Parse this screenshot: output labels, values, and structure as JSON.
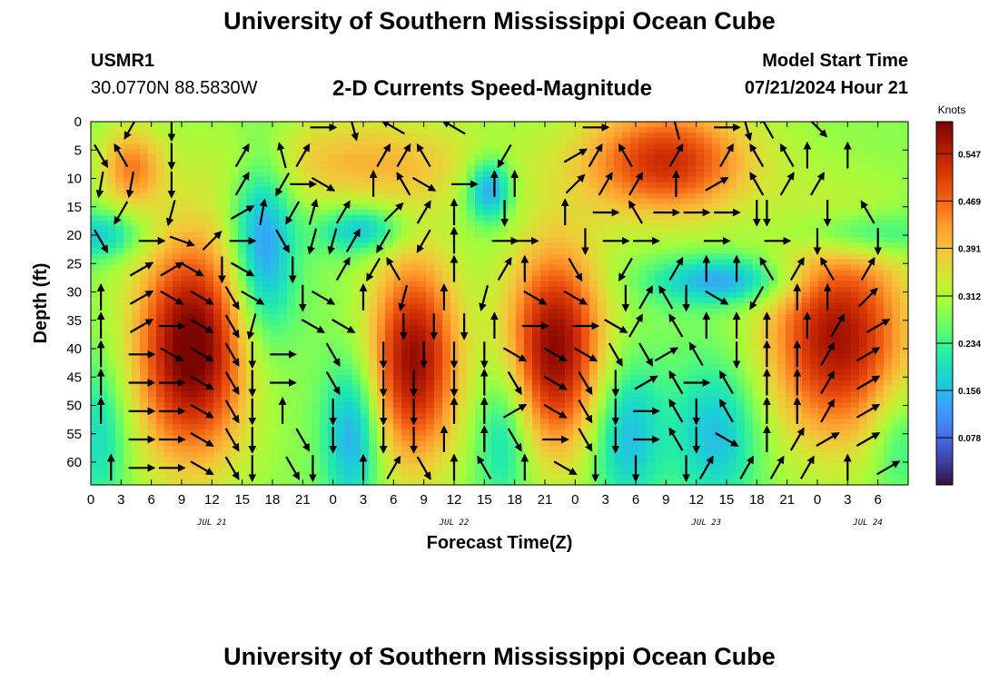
{
  "header": {
    "title": "University of Southern Mississippi Ocean Cube",
    "station_id": "USMR1",
    "station_coords": "30.0770N  88.5830W",
    "plot_title": "2-D Currents Speed-Magnitude",
    "model_start_label": "Model Start Time",
    "model_start_value": "07/21/2024 Hour 21"
  },
  "footer": {
    "title": "University of Southern Mississippi Ocean Cube"
  },
  "chart_data": {
    "type": "heatmap",
    "title": "2-D Currents Speed-Magnitude",
    "xlabel": "Forecast Time(Z)",
    "ylabel": "Depth (ft)",
    "units": "Knots",
    "xlim_hours": [
      0,
      81
    ],
    "ylim": [
      0,
      64
    ],
    "y_inverted": true,
    "x_tick_labels": [
      "0",
      "3",
      "6",
      "9",
      "12",
      "15",
      "18",
      "21",
      "0",
      "3",
      "6",
      "9",
      "12",
      "15",
      "18",
      "21",
      "0",
      "3",
      "6",
      "9",
      "12",
      "15",
      "18",
      "21",
      "0",
      "3",
      "6"
    ],
    "y_tick_labels": [
      "0",
      "5",
      "10",
      "15",
      "20",
      "25",
      "30",
      "35",
      "40",
      "45",
      "50",
      "55",
      "60"
    ],
    "date_labels": [
      {
        "hour": 12,
        "text": "JUL 21"
      },
      {
        "hour": 36,
        "text": "JUL 22"
      },
      {
        "hour": 61,
        "text": "JUL 23"
      },
      {
        "hour": 77,
        "text": "JUL 24"
      }
    ],
    "colorbar": {
      "min": 0.0,
      "max": 0.6,
      "ticks": [
        "0.547",
        "0.469",
        "0.391",
        "0.312",
        "0.234",
        "0.156",
        "0.078"
      ],
      "tick_values": [
        0.547,
        0.469,
        0.391,
        0.312,
        0.234,
        0.156,
        0.078
      ],
      "colors": [
        "#30123b",
        "#4145ab",
        "#4675ed",
        "#39a2fc",
        "#1bcfd4",
        "#24eca6",
        "#61fc6c",
        "#a4fc3b",
        "#d1e834",
        "#f3c63a",
        "#fe9b2d",
        "#f36315",
        "#d93806",
        "#b11901",
        "#7a0402"
      ]
    },
    "speed_field": {
      "background": 0.28,
      "features": [
        {
          "t": 4,
          "d": 8,
          "st": 2.2,
          "sd": 5,
          "a": 0.16
        },
        {
          "t": 10,
          "d": 40,
          "st": 4.0,
          "sd": 14,
          "a": 0.34
        },
        {
          "t": 27,
          "d": 7,
          "st": 9.0,
          "sd": 6,
          "a": 0.12
        },
        {
          "t": 32,
          "d": 42,
          "st": 3.2,
          "sd": 13,
          "a": 0.3
        },
        {
          "t": 46,
          "d": 40,
          "st": 3.5,
          "sd": 13,
          "a": 0.31
        },
        {
          "t": 57,
          "d": 7,
          "st": 6.0,
          "sd": 7,
          "a": 0.25
        },
        {
          "t": 74,
          "d": 38,
          "st": 5.0,
          "sd": 13,
          "a": 0.29
        },
        {
          "t": 17,
          "d": 22,
          "st": 2.2,
          "sd": 12,
          "a": -0.18
        },
        {
          "t": 1,
          "d": 20,
          "st": 3.0,
          "sd": 3,
          "a": -0.12
        },
        {
          "t": 27,
          "d": 19,
          "st": 3.0,
          "sd": 3,
          "a": -0.14
        },
        {
          "t": 39.5,
          "d": 12,
          "st": 1.6,
          "sd": 4,
          "a": -0.18
        },
        {
          "t": 26,
          "d": 55,
          "st": 2.0,
          "sd": 9,
          "a": -0.16
        },
        {
          "t": 41,
          "d": 55,
          "st": 2.0,
          "sd": 9,
          "a": -0.12
        },
        {
          "t": 53,
          "d": 55,
          "st": 2.5,
          "sd": 9,
          "a": -0.14
        },
        {
          "t": 63,
          "d": 28,
          "st": 5.0,
          "sd": 3,
          "a": -0.16
        },
        {
          "t": 62,
          "d": 55,
          "st": 3.0,
          "sd": 9,
          "a": -0.13
        },
        {
          "t": 76,
          "d": 20,
          "st": 5.0,
          "sd": 3,
          "a": -0.12
        },
        {
          "t": 1,
          "d": 55,
          "st": 2.0,
          "sd": 9,
          "a": -0.1
        },
        {
          "t": 80,
          "d": 56,
          "st": 2.0,
          "sd": 7,
          "a": -0.08
        }
      ]
    },
    "current_vectors": [
      [
        4,
        1,
        210
      ],
      [
        8,
        1,
        180
      ],
      [
        23,
        1,
        90
      ],
      [
        26,
        1,
        165
      ],
      [
        30,
        1,
        300
      ],
      [
        36,
        1,
        300
      ],
      [
        50,
        1,
        90
      ],
      [
        58,
        1,
        345
      ],
      [
        63,
        1,
        90
      ],
      [
        65,
        1,
        165
      ],
      [
        67,
        1,
        330
      ],
      [
        72,
        1,
        135
      ],
      [
        1,
        6,
        150
      ],
      [
        3,
        6,
        330
      ],
      [
        8,
        6,
        180
      ],
      [
        15,
        6,
        30
      ],
      [
        19,
        6,
        345
      ],
      [
        21,
        6,
        30
      ],
      [
        29,
        6,
        30
      ],
      [
        31,
        6,
        30
      ],
      [
        33,
        6,
        330
      ],
      [
        41,
        6,
        210
      ],
      [
        48,
        6,
        60
      ],
      [
        50,
        6,
        30
      ],
      [
        53,
        6,
        330
      ],
      [
        58,
        6,
        30
      ],
      [
        63,
        6,
        30
      ],
      [
        66,
        6,
        330
      ],
      [
        69,
        6,
        330
      ],
      [
        71,
        6,
        0
      ],
      [
        75,
        6,
        0
      ],
      [
        1,
        11,
        190
      ],
      [
        4,
        11,
        190
      ],
      [
        8,
        11,
        180
      ],
      [
        15,
        11,
        30
      ],
      [
        19,
        11,
        210
      ],
      [
        21,
        11,
        90
      ],
      [
        23,
        11,
        120
      ],
      [
        28,
        11,
        0
      ],
      [
        31,
        11,
        330
      ],
      [
        33,
        11,
        120
      ],
      [
        37,
        11,
        90
      ],
      [
        40,
        11,
        0
      ],
      [
        42,
        11,
        0
      ],
      [
        48,
        11,
        45
      ],
      [
        51,
        11,
        30
      ],
      [
        54,
        11,
        30
      ],
      [
        58,
        11,
        0
      ],
      [
        62,
        11,
        60
      ],
      [
        66,
        11,
        330
      ],
      [
        69,
        11,
        30
      ],
      [
        72,
        11,
        30
      ],
      [
        3,
        16,
        210
      ],
      [
        8,
        16,
        195
      ],
      [
        15,
        16,
        60
      ],
      [
        17,
        16,
        10
      ],
      [
        20,
        16,
        210
      ],
      [
        22,
        16,
        15
      ],
      [
        25,
        16,
        30
      ],
      [
        30,
        16,
        45
      ],
      [
        33,
        16,
        30
      ],
      [
        36,
        16,
        0
      ],
      [
        41,
        16,
        180
      ],
      [
        47,
        16,
        0
      ],
      [
        51,
        16,
        90
      ],
      [
        54,
        16,
        330
      ],
      [
        57,
        16,
        90
      ],
      [
        60,
        16,
        90
      ],
      [
        63,
        16,
        90
      ],
      [
        66,
        16,
        180
      ],
      [
        67,
        16,
        180
      ],
      [
        73,
        16,
        180
      ],
      [
        77,
        16,
        330
      ],
      [
        1,
        21,
        150
      ],
      [
        6,
        21,
        90
      ],
      [
        9,
        21,
        110
      ],
      [
        12,
        21,
        45
      ],
      [
        15,
        21,
        90
      ],
      [
        19,
        21,
        150
      ],
      [
        22,
        21,
        195
      ],
      [
        24,
        21,
        195
      ],
      [
        26,
        21,
        30
      ],
      [
        29,
        21,
        210
      ],
      [
        33,
        21,
        210
      ],
      [
        36,
        21,
        0
      ],
      [
        41,
        21,
        90
      ],
      [
        43,
        21,
        90
      ],
      [
        49,
        21,
        180
      ],
      [
        52,
        21,
        90
      ],
      [
        55,
        21,
        90
      ],
      [
        62,
        21,
        90
      ],
      [
        68,
        21,
        90
      ],
      [
        72,
        21,
        180
      ],
      [
        78,
        21,
        180
      ],
      [
        5,
        26,
        60
      ],
      [
        8,
        26,
        60
      ],
      [
        10,
        26,
        120
      ],
      [
        13,
        26,
        180
      ],
      [
        15,
        26,
        120
      ],
      [
        20,
        26,
        180
      ],
      [
        25,
        26,
        30
      ],
      [
        28,
        26,
        210
      ],
      [
        30,
        26,
        330
      ],
      [
        36,
        26,
        0
      ],
      [
        41,
        26,
        30
      ],
      [
        43,
        26,
        0
      ],
      [
        48,
        26,
        150
      ],
      [
        53,
        26,
        210
      ],
      [
        58,
        26,
        30
      ],
      [
        61,
        26,
        0
      ],
      [
        64,
        26,
        0
      ],
      [
        67,
        26,
        330
      ],
      [
        70,
        26,
        30
      ],
      [
        73,
        26,
        330
      ],
      [
        77,
        26,
        30
      ],
      [
        1,
        31,
        0
      ],
      [
        5,
        31,
        60
      ],
      [
        8,
        31,
        120
      ],
      [
        11,
        31,
        120
      ],
      [
        14,
        31,
        150
      ],
      [
        16,
        31,
        120
      ],
      [
        21,
        31,
        180
      ],
      [
        23,
        31,
        120
      ],
      [
        27,
        31,
        0
      ],
      [
        31,
        31,
        195
      ],
      [
        35,
        31,
        0
      ],
      [
        39,
        31,
        195
      ],
      [
        44,
        31,
        120
      ],
      [
        48,
        31,
        120
      ],
      [
        53,
        31,
        180
      ],
      [
        55,
        31,
        30
      ],
      [
        57,
        31,
        330
      ],
      [
        59,
        31,
        180
      ],
      [
        62,
        31,
        120
      ],
      [
        66,
        31,
        210
      ],
      [
        70,
        31,
        0
      ],
      [
        73,
        31,
        0
      ],
      [
        77,
        31,
        45
      ],
      [
        1,
        36,
        0
      ],
      [
        5,
        36,
        60
      ],
      [
        8,
        36,
        90
      ],
      [
        11,
        36,
        120
      ],
      [
        14,
        36,
        150
      ],
      [
        16,
        36,
        195
      ],
      [
        22,
        36,
        120
      ],
      [
        25,
        36,
        120
      ],
      [
        31,
        36,
        180
      ],
      [
        34,
        36,
        180
      ],
      [
        37,
        36,
        180
      ],
      [
        40,
        36,
        0
      ],
      [
        44,
        36,
        90
      ],
      [
        49,
        36,
        90
      ],
      [
        52,
        36,
        120
      ],
      [
        54,
        36,
        30
      ],
      [
        58,
        36,
        330
      ],
      [
        61,
        36,
        0
      ],
      [
        64,
        36,
        0
      ],
      [
        67,
        36,
        0
      ],
      [
        71,
        36,
        0
      ],
      [
        74,
        36,
        30
      ],
      [
        78,
        36,
        60
      ],
      [
        1,
        41,
        0
      ],
      [
        5,
        41,
        90
      ],
      [
        8,
        41,
        120
      ],
      [
        11,
        41,
        120
      ],
      [
        14,
        41,
        150
      ],
      [
        16,
        41,
        180
      ],
      [
        19,
        41,
        90
      ],
      [
        24,
        41,
        150
      ],
      [
        29,
        41,
        180
      ],
      [
        33,
        41,
        180
      ],
      [
        36,
        41,
        180
      ],
      [
        39,
        41,
        180
      ],
      [
        42,
        41,
        120
      ],
      [
        46,
        41,
        120
      ],
      [
        49,
        41,
        120
      ],
      [
        52,
        41,
        150
      ],
      [
        55,
        41,
        150
      ],
      [
        57,
        41,
        60
      ],
      [
        60,
        41,
        330
      ],
      [
        64,
        41,
        180
      ],
      [
        67,
        41,
        0
      ],
      [
        70,
        41,
        0
      ],
      [
        73,
        41,
        30
      ],
      [
        77,
        41,
        60
      ],
      [
        1,
        46,
        0
      ],
      [
        5,
        46,
        90
      ],
      [
        8,
        46,
        90
      ],
      [
        11,
        46,
        120
      ],
      [
        14,
        46,
        150
      ],
      [
        16,
        46,
        180
      ],
      [
        19,
        46,
        90
      ],
      [
        24,
        46,
        150
      ],
      [
        29,
        46,
        180
      ],
      [
        32,
        46,
        180
      ],
      [
        36,
        46,
        180
      ],
      [
        39,
        46,
        0
      ],
      [
        42,
        46,
        150
      ],
      [
        46,
        46,
        120
      ],
      [
        49,
        46,
        150
      ],
      [
        52,
        46,
        180
      ],
      [
        55,
        46,
        60
      ],
      [
        58,
        46,
        330
      ],
      [
        60,
        46,
        90
      ],
      [
        63,
        46,
        330
      ],
      [
        67,
        46,
        0
      ],
      [
        70,
        46,
        0
      ],
      [
        73,
        46,
        30
      ],
      [
        77,
        46,
        60
      ],
      [
        1,
        51,
        0
      ],
      [
        5,
        51,
        90
      ],
      [
        8,
        51,
        90
      ],
      [
        11,
        51,
        120
      ],
      [
        14,
        51,
        150
      ],
      [
        16,
        51,
        180
      ],
      [
        19,
        51,
        0
      ],
      [
        24,
        51,
        180
      ],
      [
        29,
        51,
        180
      ],
      [
        32,
        51,
        180
      ],
      [
        36,
        51,
        0
      ],
      [
        39,
        51,
        0
      ],
      [
        42,
        51,
        60
      ],
      [
        46,
        51,
        120
      ],
      [
        49,
        51,
        150
      ],
      [
        52,
        51,
        180
      ],
      [
        55,
        51,
        90
      ],
      [
        58,
        51,
        330
      ],
      [
        60,
        51,
        180
      ],
      [
        63,
        51,
        330
      ],
      [
        67,
        51,
        0
      ],
      [
        70,
        51,
        0
      ],
      [
        73,
        51,
        30
      ],
      [
        77,
        51,
        60
      ],
      [
        5,
        56,
        90
      ],
      [
        8,
        56,
        90
      ],
      [
        11,
        56,
        120
      ],
      [
        14,
        56,
        150
      ],
      [
        16,
        56,
        180
      ],
      [
        21,
        56,
        150
      ],
      [
        24,
        56,
        180
      ],
      [
        29,
        56,
        180
      ],
      [
        32,
        56,
        180
      ],
      [
        35,
        56,
        0
      ],
      [
        39,
        56,
        0
      ],
      [
        42,
        56,
        150
      ],
      [
        46,
        56,
        90
      ],
      [
        49,
        56,
        150
      ],
      [
        52,
        56,
        180
      ],
      [
        55,
        56,
        90
      ],
      [
        58,
        56,
        330
      ],
      [
        60,
        56,
        180
      ],
      [
        63,
        56,
        120
      ],
      [
        67,
        56,
        0
      ],
      [
        70,
        56,
        30
      ],
      [
        73,
        56,
        60
      ],
      [
        77,
        56,
        60
      ],
      [
        2,
        61,
        0
      ],
      [
        5,
        61,
        90
      ],
      [
        8,
        61,
        90
      ],
      [
        11,
        61,
        120
      ],
      [
        14,
        61,
        150
      ],
      [
        16,
        61,
        180
      ],
      [
        20,
        61,
        150
      ],
      [
        22,
        61,
        180
      ],
      [
        27,
        61,
        0
      ],
      [
        30,
        61,
        30
      ],
      [
        33,
        61,
        150
      ],
      [
        36,
        61,
        0
      ],
      [
        39,
        61,
        330
      ],
      [
        43,
        61,
        0
      ],
      [
        47,
        61,
        120
      ],
      [
        50,
        61,
        180
      ],
      [
        54,
        61,
        180
      ],
      [
        59,
        61,
        180
      ],
      [
        61,
        61,
        30
      ],
      [
        65,
        61,
        30
      ],
      [
        68,
        61,
        30
      ],
      [
        71,
        61,
        30
      ],
      [
        75,
        61,
        0
      ],
      [
        79,
        61,
        60
      ]
    ]
  }
}
